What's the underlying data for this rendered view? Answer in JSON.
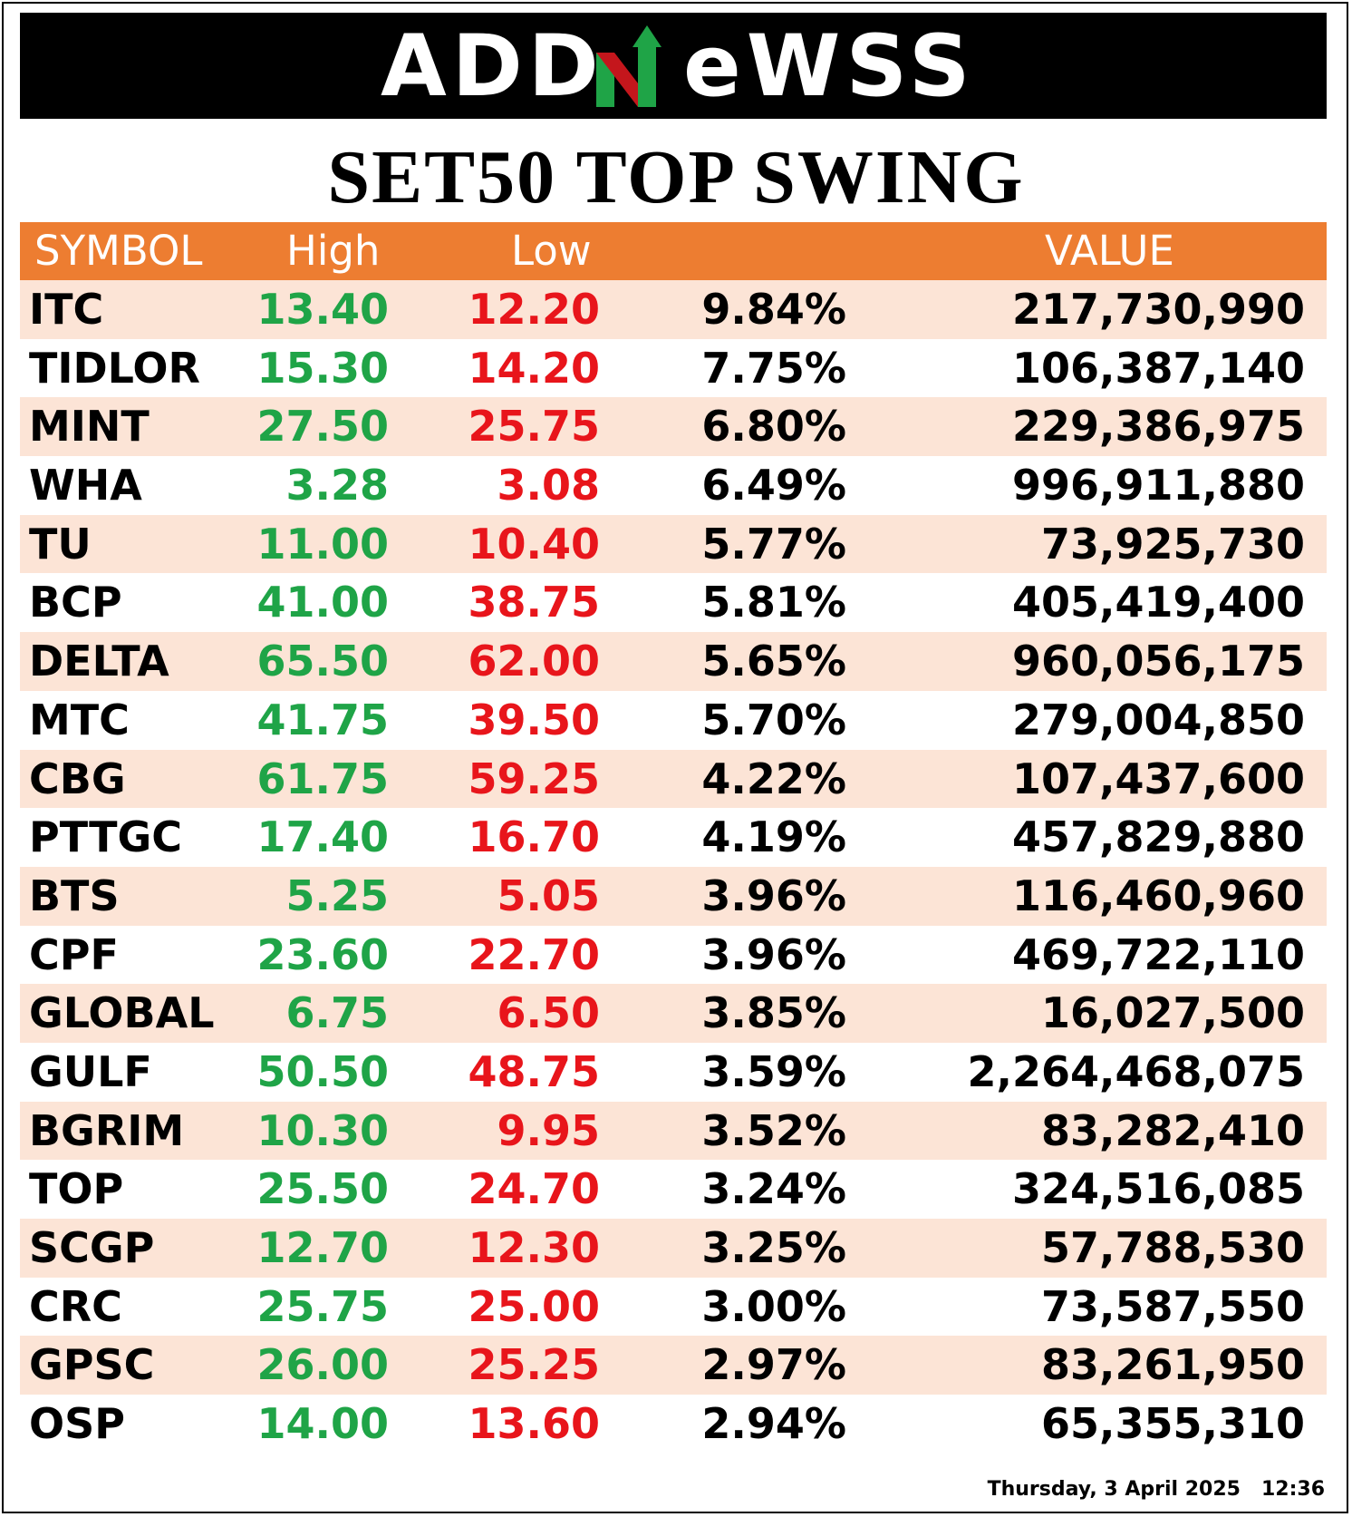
{
  "brand": {
    "logo_left": "ADD",
    "logo_right": "eWSS",
    "colors": {
      "green": "#1fa447",
      "red": "#e8151b",
      "banner": "#000000"
    }
  },
  "title": "SET50 TOP SWING",
  "table": {
    "headers": [
      "SYMBOL",
      "High",
      "Low",
      "",
      "VALUE"
    ],
    "header_color": "#ed7d31",
    "stripe_color": "#fce4d6"
  },
  "chart_data": {
    "type": "table",
    "title": "SET50 TOP SWING",
    "columns": [
      "SYMBOL",
      "High",
      "Low",
      "",
      "VALUE"
    ],
    "rows": [
      [
        "ITC",
        "13.40",
        "12.20",
        "9.84%",
        "217,730,990"
      ],
      [
        "TIDLOR",
        "15.30",
        "14.20",
        "7.75%",
        "106,387,140"
      ],
      [
        "MINT",
        "27.50",
        "25.75",
        "6.80%",
        "229,386,975"
      ],
      [
        "WHA",
        "3.28",
        "3.08",
        "6.49%",
        "996,911,880"
      ],
      [
        "TU",
        "11.00",
        "10.40",
        "5.77%",
        "73,925,730"
      ],
      [
        "BCP",
        "41.00",
        "38.75",
        "5.81%",
        "405,419,400"
      ],
      [
        "DELTA",
        "65.50",
        "62.00",
        "5.65%",
        "960,056,175"
      ],
      [
        "MTC",
        "41.75",
        "39.50",
        "5.70%",
        "279,004,850"
      ],
      [
        "CBG",
        "61.75",
        "59.25",
        "4.22%",
        "107,437,600"
      ],
      [
        "PTTGC",
        "17.40",
        "16.70",
        "4.19%",
        "457,829,880"
      ],
      [
        "BTS",
        "5.25",
        "5.05",
        "3.96%",
        "116,460,960"
      ],
      [
        "CPF",
        "23.60",
        "22.70",
        "3.96%",
        "469,722,110"
      ],
      [
        "GLOBAL",
        "6.75",
        "6.50",
        "3.85%",
        "16,027,500"
      ],
      [
        "GULF",
        "50.50",
        "48.75",
        "3.59%",
        "2,264,468,075"
      ],
      [
        "BGRIM",
        "10.30",
        "9.95",
        "3.52%",
        "83,282,410"
      ],
      [
        "TOP",
        "25.50",
        "24.70",
        "3.24%",
        "324,516,085"
      ],
      [
        "SCGP",
        "12.70",
        "12.30",
        "3.25%",
        "57,788,530"
      ],
      [
        "CRC",
        "25.75",
        "25.00",
        "3.00%",
        "73,587,550"
      ],
      [
        "GPSC",
        "26.00",
        "25.25",
        "2.97%",
        "83,261,950"
      ],
      [
        "OSP",
        "14.00",
        "13.60",
        "2.94%",
        "65,355,310"
      ]
    ]
  },
  "footer": {
    "date": "Thursday, 3 April 2025",
    "time": "12:36"
  }
}
